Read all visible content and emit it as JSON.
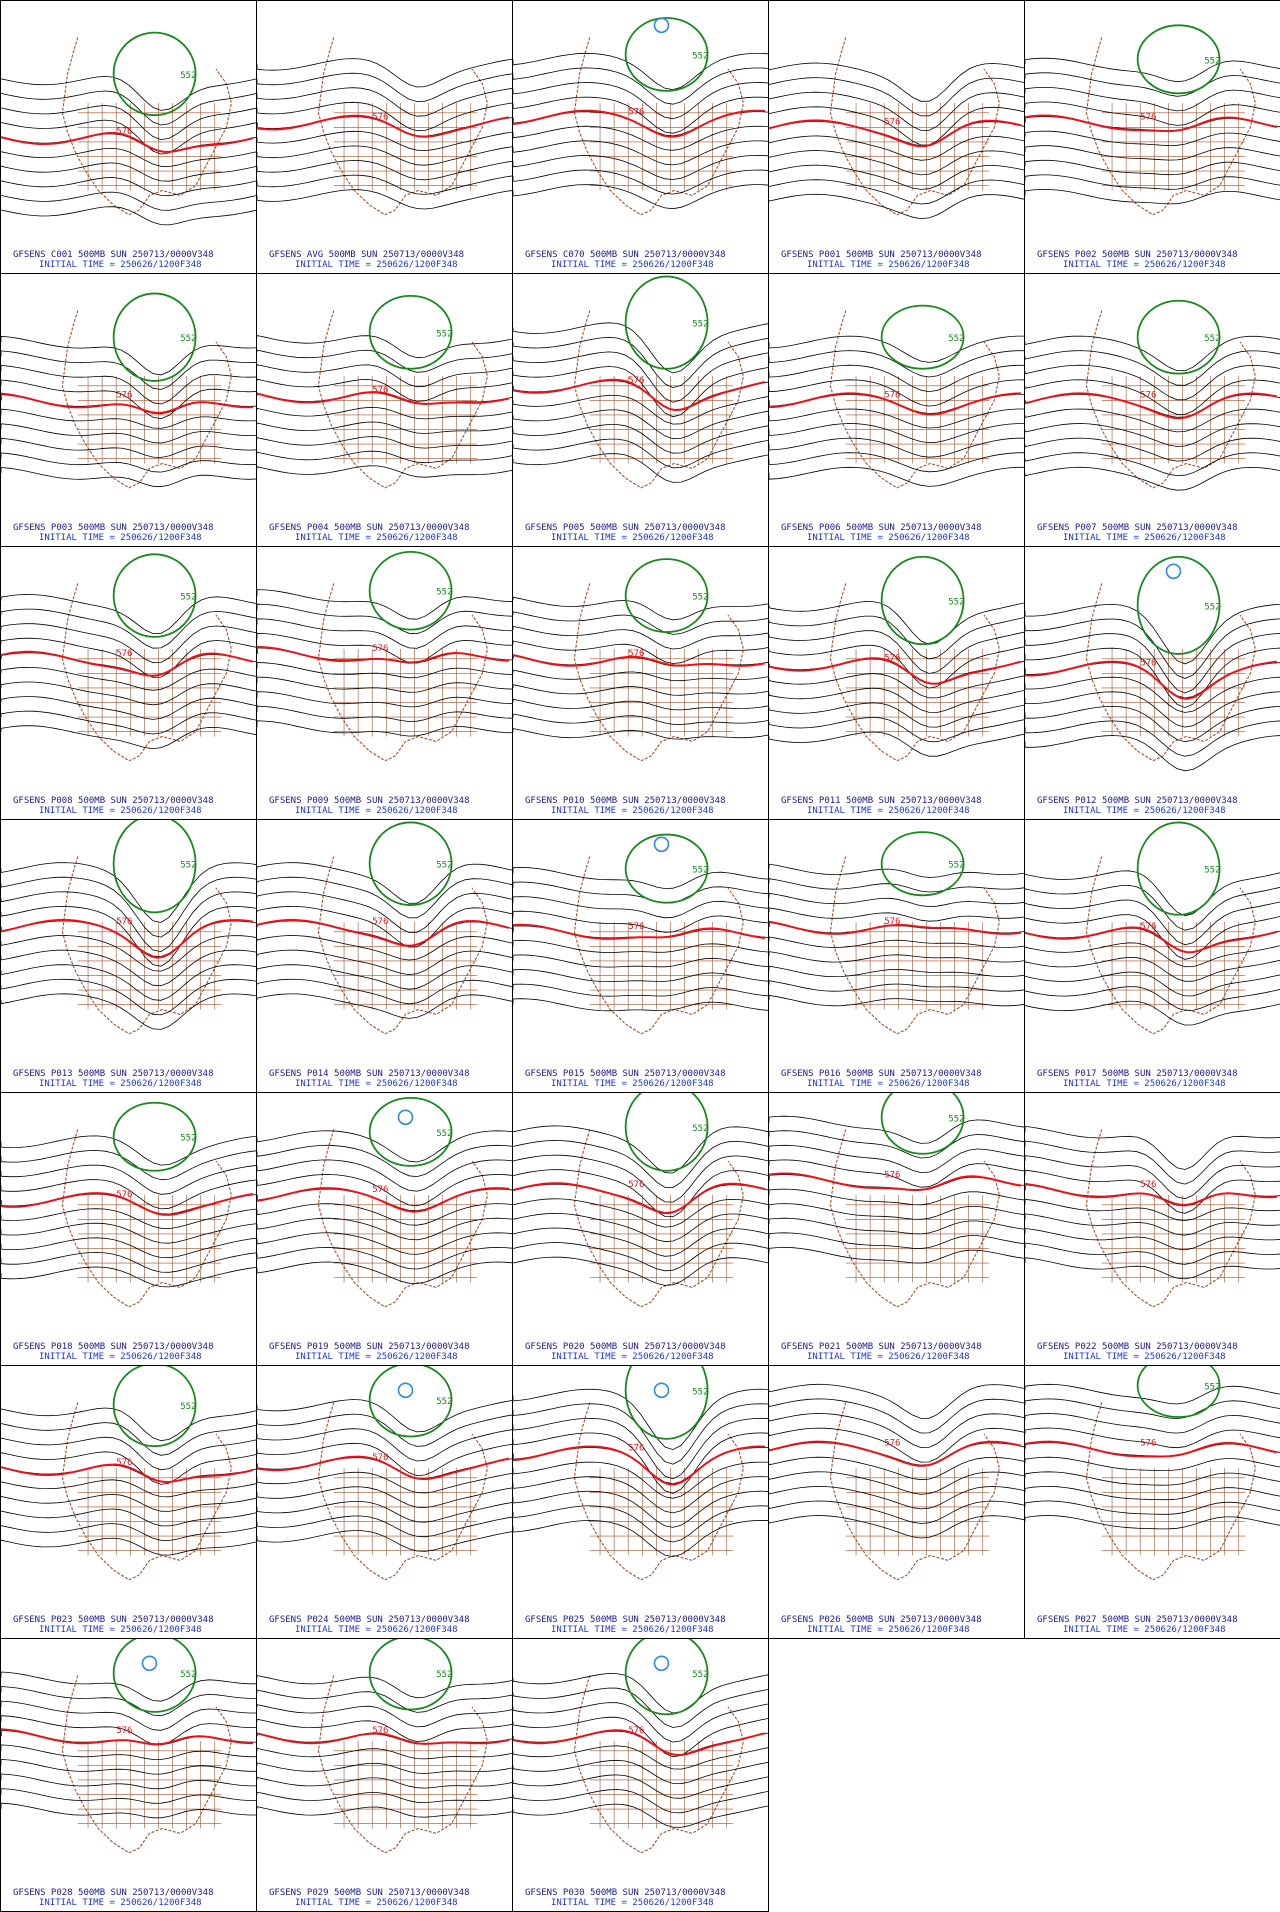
{
  "style": {
    "contour_color": "#000000",
    "ridge_color": "#e8141c",
    "trough_color": "#17891d",
    "low_color": "#2f8ae0",
    "map_color": "#a0522d",
    "caption_color": "#1a1a8c",
    "time_color": "#1e34d6"
  },
  "contour_labels": {
    "ridge": "576",
    "trough": "552"
  },
  "panels": [
    {
      "member": "C001",
      "title": "GFSENS C001 500MB SUN 250713/0000V348",
      "init": "INITIAL TIME = 250626/1200F348",
      "ridge_lat": 0.56,
      "trough_depth": 0.14,
      "has_trough": true,
      "has_low": false
    },
    {
      "member": "AVG",
      "title": "GFSENS AVG 500MB SUN 250713/0000V348",
      "init": "INITIAL TIME = 250626/1200F348",
      "ridge_lat": 0.5,
      "trough_depth": 0.08,
      "has_trough": false,
      "has_low": false
    },
    {
      "member": "C070",
      "title": "GFSENS C070 500MB SUN 250713/0000V348",
      "init": "INITIAL TIME = 250626/1200F348",
      "ridge_lat": 0.48,
      "trough_depth": 0.1,
      "has_trough": true,
      "has_low": true
    },
    {
      "member": "P001",
      "title": "GFSENS P001 500MB SUN 250713/0000V348",
      "init": "INITIAL TIME = 250626/1200F348",
      "ridge_lat": 0.52,
      "trough_depth": 0.12,
      "has_trough": false,
      "has_low": false
    },
    {
      "member": "P002",
      "title": "GFSENS P002 500MB SUN 250713/0000V348",
      "init": "INITIAL TIME = 250626/1200F348",
      "ridge_lat": 0.5,
      "trough_depth": 0.08,
      "has_trough": true,
      "has_low": false
    },
    {
      "member": "P003",
      "title": "GFSENS P003 500MB SUN 250713/0000V348",
      "init": "INITIAL TIME = 250626/1200F348",
      "ridge_lat": 0.52,
      "trough_depth": 0.16,
      "has_trough": true,
      "has_low": false
    },
    {
      "member": "P004",
      "title": "GFSENS P004 500MB SUN 250713/0000V348",
      "init": "INITIAL TIME = 250626/1200F348",
      "ridge_lat": 0.5,
      "trough_depth": 0.1,
      "has_trough": true,
      "has_low": false
    },
    {
      "member": "P005",
      "title": "GFSENS P005 500MB SUN 250713/0000V348",
      "init": "INITIAL TIME = 250626/1200F348",
      "ridge_lat": 0.46,
      "trough_depth": 0.18,
      "has_trough": true,
      "has_low": false
    },
    {
      "member": "P006",
      "title": "GFSENS P006 500MB SUN 250713/0000V348",
      "init": "INITIAL TIME = 250626/1200F348",
      "ridge_lat": 0.52,
      "trough_depth": 0.06,
      "has_trough": true,
      "has_low": false
    },
    {
      "member": "P007",
      "title": "GFSENS P007 500MB SUN 250713/0000V348",
      "init": "INITIAL TIME = 250626/1200F348",
      "ridge_lat": 0.52,
      "trough_depth": 0.1,
      "has_trough": true,
      "has_low": false
    },
    {
      "member": "P008",
      "title": "GFSENS P008 500MB SUN 250713/0000V348",
      "init": "INITIAL TIME = 250626/1200F348",
      "ridge_lat": 0.46,
      "trough_depth": 0.14,
      "has_trough": true,
      "has_low": false
    },
    {
      "member": "P009",
      "title": "GFSENS P009 500MB SUN 250713/0000V348",
      "init": "INITIAL TIME = 250626/1200F348",
      "ridge_lat": 0.44,
      "trough_depth": 0.12,
      "has_trough": true,
      "has_low": false
    },
    {
      "member": "P010",
      "title": "GFSENS P010 500MB SUN 250713/0000V348",
      "init": "INITIAL TIME = 250626/1200F348",
      "ridge_lat": 0.46,
      "trough_depth": 0.1,
      "has_trough": true,
      "has_low": false
    },
    {
      "member": "P011",
      "title": "GFSENS P011 500MB SUN 250713/0000V348",
      "init": "INITIAL TIME = 250626/1200F348",
      "ridge_lat": 0.48,
      "trough_depth": 0.16,
      "has_trough": true,
      "has_low": false
    },
    {
      "member": "P012",
      "title": "GFSENS P012 500MB SUN 250713/0000V348",
      "init": "INITIAL TIME = 250626/1200F348",
      "ridge_lat": 0.5,
      "trough_depth": 0.2,
      "has_trough": true,
      "has_low": true
    },
    {
      "member": "P013",
      "title": "GFSENS P013 500MB SUN 250713/0000V348",
      "init": "INITIAL TIME = 250626/1200F348",
      "ridge_lat": 0.44,
      "trough_depth": 0.2,
      "has_trough": true,
      "has_low": false
    },
    {
      "member": "P014",
      "title": "GFSENS P014 500MB SUN 250713/0000V348",
      "init": "INITIAL TIME = 250626/1200F348",
      "ridge_lat": 0.44,
      "trough_depth": 0.14,
      "has_trough": true,
      "has_low": false
    },
    {
      "member": "P015",
      "title": "GFSENS P015 500MB SUN 250713/0000V348",
      "init": "INITIAL TIME = 250626/1200F348",
      "ridge_lat": 0.46,
      "trough_depth": 0.08,
      "has_trough": true,
      "has_low": true
    },
    {
      "member": "P016",
      "title": "GFSENS P016 500MB SUN 250713/0000V348",
      "init": "INITIAL TIME = 250626/1200F348",
      "ridge_lat": 0.44,
      "trough_depth": 0.06,
      "has_trough": true,
      "has_low": false
    },
    {
      "member": "P017",
      "title": "GFSENS P017 500MB SUN 250713/0000V348",
      "init": "INITIAL TIME = 250626/1200F348",
      "ridge_lat": 0.46,
      "trough_depth": 0.18,
      "has_trough": true,
      "has_low": false
    },
    {
      "member": "P018",
      "title": "GFSENS P018 500MB SUN 250713/0000V348",
      "init": "INITIAL TIME = 250626/1200F348",
      "ridge_lat": 0.44,
      "trough_depth": 0.08,
      "has_trough": true,
      "has_low": false
    },
    {
      "member": "P019",
      "title": "GFSENS P019 500MB SUN 250713/0000V348",
      "init": "INITIAL TIME = 250626/1200F348",
      "ridge_lat": 0.42,
      "trough_depth": 0.08,
      "has_trough": true,
      "has_low": true
    },
    {
      "member": "P020",
      "title": "GFSENS P020 500MB SUN 250713/0000V348",
      "init": "INITIAL TIME = 250626/1200F348",
      "ridge_lat": 0.4,
      "trough_depth": 0.16,
      "has_trough": true,
      "has_low": false
    },
    {
      "member": "P021",
      "title": "GFSENS P021 500MB SUN 250713/0000V348",
      "init": "INITIAL TIME = 250626/1200F348",
      "ridge_lat": 0.36,
      "trough_depth": 0.1,
      "has_trough": true,
      "has_low": false
    },
    {
      "member": "P022",
      "title": "GFSENS P022 500MB SUN 250713/0000V348",
      "init": "INITIAL TIME = 250626/1200F348",
      "ridge_lat": 0.4,
      "trough_depth": 0.18,
      "has_trough": false,
      "has_low": false
    },
    {
      "member": "P023",
      "title": "GFSENS P023 500MB SUN 250713/0000V348",
      "init": "INITIAL TIME = 250626/1200F348",
      "ridge_lat": 0.42,
      "trough_depth": 0.14,
      "has_trough": true,
      "has_low": false
    },
    {
      "member": "P024",
      "title": "GFSENS P024 500MB SUN 250713/0000V348",
      "init": "INITIAL TIME = 250626/1200F348",
      "ridge_lat": 0.4,
      "trough_depth": 0.1,
      "has_trough": true,
      "has_low": true
    },
    {
      "member": "P025",
      "title": "GFSENS P025 500MB SUN 250713/0000V348",
      "init": "INITIAL TIME = 250626/1200F348",
      "ridge_lat": 0.36,
      "trough_depth": 0.2,
      "has_trough": true,
      "has_low": true
    },
    {
      "member": "P026",
      "title": "GFSENS P026 500MB SUN 250713/0000V348",
      "init": "INITIAL TIME = 250626/1200F348",
      "ridge_lat": 0.34,
      "trough_depth": 0.1,
      "has_trough": false,
      "has_low": false
    },
    {
      "member": "P027",
      "title": "GFSENS P027 500MB SUN 250713/0000V348",
      "init": "INITIAL TIME = 250626/1200F348",
      "ridge_lat": 0.34,
      "trough_depth": 0.06,
      "has_trough": true,
      "has_low": false
    },
    {
      "member": "P028",
      "title": "GFSENS P028 500MB SUN 250713/0000V348",
      "init": "INITIAL TIME = 250626/1200F348",
      "ridge_lat": 0.4,
      "trough_depth": 0.12,
      "has_trough": true,
      "has_low": true
    },
    {
      "member": "P029",
      "title": "GFSENS P029 500MB SUN 250713/0000V348",
      "init": "INITIAL TIME = 250626/1200F348",
      "ridge_lat": 0.4,
      "trough_depth": 0.1,
      "has_trough": true,
      "has_low": false
    },
    {
      "member": "P030",
      "title": "GFSENS P030 500MB SUN 250713/0000V348",
      "init": "INITIAL TIME = 250626/1200F348",
      "ridge_lat": 0.4,
      "trough_depth": 0.14,
      "has_trough": true,
      "has_low": true
    }
  ]
}
